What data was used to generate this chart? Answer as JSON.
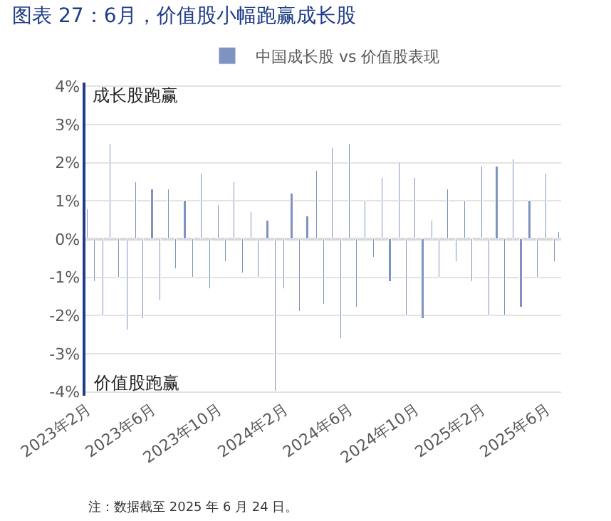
{
  "chart_data": {
    "type": "bar",
    "title": "图表 27：6月，价值股小幅跑赢成长股",
    "x": [
      "2023-02-01",
      "2023-02-15",
      "2023-03-01",
      "2023-03-15",
      "2023-04-01",
      "2023-04-15",
      "2023-05-01",
      "2023-05-15",
      "2023-06-01",
      "2023-06-15",
      "2023-07-01",
      "2023-07-15",
      "2023-08-01",
      "2023-08-15",
      "2023-09-01",
      "2023-09-15",
      "2023-10-01",
      "2023-10-15",
      "2023-11-01",
      "2023-11-15",
      "2023-12-01",
      "2023-12-15",
      "2024-01-01",
      "2024-01-15",
      "2024-02-01",
      "2024-02-15",
      "2024-03-01",
      "2024-03-15",
      "2024-04-01",
      "2024-04-15",
      "2024-05-01",
      "2024-05-15",
      "2024-06-01",
      "2024-06-15",
      "2024-07-01",
      "2024-07-15",
      "2024-08-01",
      "2024-08-15",
      "2024-09-01",
      "2024-09-15",
      "2024-10-01",
      "2024-10-15",
      "2024-11-01",
      "2024-11-15",
      "2024-12-01",
      "2024-12-15",
      "2025-01-01",
      "2025-01-15",
      "2025-02-01",
      "2025-02-15",
      "2025-03-01",
      "2025-03-15",
      "2025-04-01",
      "2025-04-15",
      "2025-05-01",
      "2025-05-15",
      "2025-06-01",
      "2025-06-15",
      "2025-06-24"
    ],
    "series": [
      {
        "name": "中国成长股 vs 价值股表现",
        "color": "#7e93c0",
        "values": [
          0.8,
          -1.1,
          -2.0,
          2.5,
          -1.0,
          -2.4,
          1.5,
          -2.1,
          1.3,
          -1.6,
          1.3,
          -0.8,
          1.0,
          -1.0,
          1.7,
          -1.3,
          0.9,
          -0.6,
          1.5,
          -0.9,
          0.7,
          -1.0,
          0.5,
          -4.0,
          -1.3,
          1.2,
          -1.9,
          0.6,
          1.8,
          -1.7,
          2.4,
          -2.6,
          2.5,
          -1.8,
          1.0,
          -0.5,
          1.6,
          -1.1,
          2.0,
          -2.0,
          1.6,
          -2.1,
          0.5,
          -1.0,
          1.3,
          -0.6,
          1.0,
          -1.1,
          1.9,
          -2.0,
          1.9,
          -2.0,
          2.1,
          -1.8,
          1.0,
          -1.0,
          1.7,
          -0.6,
          0.2
        ]
      }
    ],
    "xlim": [
      "2023-01-28",
      "2025-06-28"
    ],
    "xticks": [
      {
        "value": "2023-02-01",
        "label": "2023年2月"
      },
      {
        "value": "2023-06-01",
        "label": "2023年6月"
      },
      {
        "value": "2023-10-01",
        "label": "2023年10月"
      },
      {
        "value": "2024-02-01",
        "label": "2024年2月"
      },
      {
        "value": "2024-06-01",
        "label": "2024年6月"
      },
      {
        "value": "2024-10-01",
        "label": "2024年10月"
      },
      {
        "value": "2025-02-01",
        "label": "2025年2月"
      },
      {
        "value": "2025-06-01",
        "label": "2025年6月"
      }
    ],
    "ylim": [
      -4.1,
      4.1
    ],
    "yticks": [
      {
        "value": -4,
        "label": "-4%"
      },
      {
        "value": -3,
        "label": "-3%"
      },
      {
        "value": -2,
        "label": "-2%"
      },
      {
        "value": -1,
        "label": "-1%"
      },
      {
        "value": 0,
        "label": "0%"
      },
      {
        "value": 1,
        "label": "1%"
      },
      {
        "value": 2,
        "label": "2%"
      },
      {
        "value": 3,
        "label": "3%"
      },
      {
        "value": 4,
        "label": "4%"
      }
    ],
    "grid": "y",
    "legend": "top",
    "annotations": [
      "成长股跑赢",
      "价值股跑赢",
      "注：数据截至 2025 年 6 月 24 日。"
    ]
  }
}
